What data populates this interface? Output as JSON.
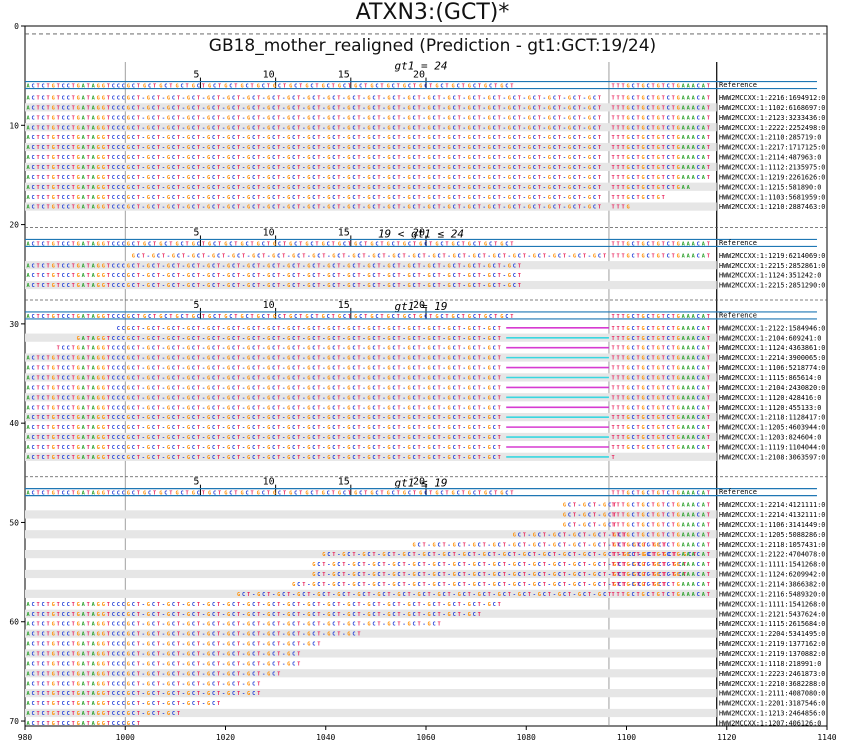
{
  "title": "ATXN3:(GCT)*",
  "subtitle": "GB18_mother_realigned (Prediction - gt1:GCT:19/24)",
  "repeat_unit": "GCT",
  "reference_label": "Reference",
  "flank_left": "ACTCTGTCCTGATAGGTCCC",
  "flank_right": "TTTGCTGCTGTCTGAAACAT",
  "x_axis": {
    "min": 980,
    "max": 1140,
    "ticks": [
      "980",
      "1000",
      "1020",
      "1040",
      "1060",
      "1080",
      "1100",
      "1120",
      "1140"
    ]
  },
  "y_axis": {
    "ticks": [
      "0",
      "10",
      "20",
      "30",
      "40",
      "50",
      "60",
      "70"
    ]
  },
  "repeat_ticks": [
    "5",
    "10",
    "15",
    "20"
  ],
  "colors": {
    "A": "#2ca02c",
    "C": "#1f3bd6",
    "G": "#ff8c00",
    "T": "#e8205a",
    "pink": "#d63bd1",
    "cyan": "#39d7e0",
    "ref_line": "#1f77b4"
  },
  "panels": [
    {
      "label": "gt1 = 24",
      "reads": [
        {
          "name": "HWW2MCCXX:1:2216:1694912:0",
          "start": 0,
          "left": 20,
          "repeats": 24,
          "right": 20
        },
        {
          "name": "HWW2MCCXX:1:1102:6168697:0",
          "start": 0,
          "left": 20,
          "repeats": 24,
          "right": 20
        },
        {
          "name": "HWW2MCCXX:1:2123:3233436:0",
          "start": 0,
          "left": 20,
          "repeats": 24,
          "right": 20
        },
        {
          "name": "HWW2MCCXX:1:2222:2252498:0",
          "start": 0,
          "left": 20,
          "repeats": 24,
          "right": 20
        },
        {
          "name": "HWW2MCCXX:1:2110:285719:0",
          "start": 0,
          "left": 20,
          "repeats": 24,
          "right": 20
        },
        {
          "name": "HWW2MCCXX:1:2217:1717125:0",
          "start": 0,
          "left": 20,
          "repeats": 24,
          "right": 20
        },
        {
          "name": "HWW2MCCXX:1:2114:487963:0",
          "start": 0,
          "left": 20,
          "repeats": 24,
          "right": 20
        },
        {
          "name": "HWW2MCCXX:1:1112:2135975:0",
          "start": 0,
          "left": 20,
          "repeats": 24,
          "right": 20
        },
        {
          "name": "HWW2MCCXX:1:1219:2261626:0",
          "start": 0,
          "left": 20,
          "repeats": 24,
          "right": 20
        },
        {
          "name": "HWW2MCCXX:1:1215:581890:0",
          "start": 0,
          "left": 20,
          "repeats": 24,
          "right": 16
        },
        {
          "name": "HWW2MCCXX:1:1103:5681959:0",
          "start": 0,
          "left": 20,
          "repeats": 24,
          "right": 11
        },
        {
          "name": "HWW2MCCXX:1:1210:2887463:0",
          "start": 0,
          "left": 20,
          "repeats": 24,
          "right": 4
        }
      ]
    },
    {
      "label": "19 < gt1 ≤ 24",
      "reads": [
        {
          "name": "HWW2MCCXX:1:1219:6214069:0",
          "start": 1001,
          "left": 0,
          "repeats": 24,
          "right": 20
        },
        {
          "name": "HWW2MCCXX:1:2215:2852861:0",
          "start": 0,
          "left": 20,
          "repeats": 20,
          "right": 0
        },
        {
          "name": "HWW2MCCXX:1:1124:351242:0",
          "start": 0,
          "left": 20,
          "repeats": 20,
          "right": 0
        },
        {
          "name": "HWW2MCCXX:1:2215:2851290:0",
          "start": 0,
          "left": 20,
          "repeats": 20,
          "right": 0
        }
      ]
    },
    {
      "label": "gt1 = 19",
      "reads": [
        {
          "name": "HWW2MCCXX:1:2122:1584946:0",
          "start": 998,
          "left": 2,
          "repeats": 19,
          "right": 20,
          "gap": "pink"
        },
        {
          "name": "HWW2MCCXX:1:2104:609241:0",
          "start": 990,
          "left": 10,
          "repeats": 19,
          "right": 20,
          "gap": "cyan"
        },
        {
          "name": "HWW2MCCXX:1:1124:4363861:0",
          "start": 986,
          "left": 14,
          "repeats": 19,
          "right": 20,
          "gap": "pink"
        },
        {
          "name": "HWW2MCCXX:1:2214:3900065:0",
          "start": 0,
          "left": 20,
          "repeats": 19,
          "right": 20,
          "gap": "cyan"
        },
        {
          "name": "HWW2MCCXX:1:1106:5218774:0",
          "start": 0,
          "left": 20,
          "repeats": 19,
          "right": 20,
          "gap": "pink"
        },
        {
          "name": "HWW2MCCXX:1:1115:865614:0",
          "start": 0,
          "left": 20,
          "repeats": 19,
          "right": 20,
          "gap": "cyan"
        },
        {
          "name": "HWW2MCCXX:1:2104:2430820:0",
          "start": 0,
          "left": 20,
          "repeats": 19,
          "right": 20,
          "gap": "pink"
        },
        {
          "name": "HWW2MCCXX:1:1120:428416:0",
          "start": 0,
          "left": 20,
          "repeats": 19,
          "right": 20,
          "gap": "cyan"
        },
        {
          "name": "HWW2MCCXX:1:1120:455133:0",
          "start": 0,
          "left": 20,
          "repeats": 19,
          "right": 20,
          "gap": "pink"
        },
        {
          "name": "HWW2MCCXX:1:2118:1128417:0",
          "start": 0,
          "left": 20,
          "repeats": 19,
          "right": 20,
          "gap": "cyan"
        },
        {
          "name": "HWW2MCCXX:1:1205:4603944:0",
          "start": 0,
          "left": 20,
          "repeats": 19,
          "right": 20,
          "gap": "pink"
        },
        {
          "name": "HWW2MCCXX:1:1203:824604:0",
          "start": 0,
          "left": 20,
          "repeats": 19,
          "right": 20,
          "gap": "cyan"
        },
        {
          "name": "HWW2MCCXX:1:1119:1104044:0",
          "start": 0,
          "left": 20,
          "repeats": 19,
          "right": 20,
          "gap": "pink"
        },
        {
          "name": "HWW2MCCXX:1:2108:3063597:0",
          "start": 0,
          "left": 20,
          "repeats": 19,
          "right": 1,
          "gap": "cyan"
        }
      ]
    },
    {
      "label": "gt1 ≤ 19",
      "reads": [
        {
          "name": "HWW2MCCXX:1:2214:4121111:0",
          "start": 1087,
          "left": 0,
          "repeats": 3,
          "right": 20
        },
        {
          "name": "HWW2MCCXX:1:2214:4132111:0",
          "start": 1087,
          "left": 0,
          "repeats": 3,
          "right": 20
        },
        {
          "name": "HWW2MCCXX:1:1106:3141449:0",
          "start": 1087,
          "left": 0,
          "repeats": 3,
          "right": 20
        },
        {
          "name": "HWW2MCCXX:1:1205:5088286:0",
          "start": 1077,
          "left": 0,
          "repeats": 6,
          "right": 20
        },
        {
          "name": "HWW2MCCXX:1:2118:1057431:0",
          "start": 1057,
          "left": 0,
          "repeats": 13,
          "right": 20
        },
        {
          "name": "HWW2MCCXX:1:2122:4704078:0",
          "start": 1039,
          "left": 0,
          "repeats": 19,
          "right": 20
        },
        {
          "name": "HWW2MCCXX:1:1111:1541268:0",
          "start": 1037,
          "left": 0,
          "repeats": 19,
          "right": 20
        },
        {
          "name": "HWW2MCCXX:1:1124:6209942:0",
          "start": 1037,
          "left": 0,
          "repeats": 19,
          "right": 20
        },
        {
          "name": "HWW2MCCXX:1:2114:3866382:0",
          "start": 1033,
          "left": 0,
          "repeats": 19,
          "right": 20
        },
        {
          "name": "HWW2MCCXX:1:2116:5489320:0",
          "start": 1022,
          "left": 0,
          "repeats": 19,
          "right": 20
        },
        {
          "name": "HWW2MCCXX:1:1111:1541268:0",
          "start": 0,
          "left": 20,
          "repeats": 19,
          "right": 0
        },
        {
          "name": "HWW2MCCXX:1:2121:5437624:0",
          "start": 0,
          "left": 20,
          "repeats": 18,
          "right": 0
        },
        {
          "name": "HWW2MCCXX:1:1115:2615684:0",
          "start": 0,
          "left": 20,
          "repeats": 16,
          "right": 0
        },
        {
          "name": "HWW2MCCXX:1:2204:5341495:0",
          "start": 0,
          "left": 20,
          "repeats": 12,
          "right": 0
        },
        {
          "name": "HWW2MCCXX:1:2119:1377162:0",
          "start": 0,
          "left": 20,
          "repeats": 10,
          "right": 0
        },
        {
          "name": "HWW2MCCXX:1:2119:1370882:0",
          "start": 0,
          "left": 20,
          "repeats": 9,
          "right": 0
        },
        {
          "name": "HWW2MCCXX:1:1118:218991:0",
          "start": 0,
          "left": 20,
          "repeats": 9,
          "right": 0
        },
        {
          "name": "HWW2MCCXX:1:2223:2461873:0",
          "start": 0,
          "left": 20,
          "repeats": 8,
          "right": 0
        },
        {
          "name": "HWW2MCCXX:1:2210:3682288:0",
          "start": 0,
          "left": 20,
          "repeats": 7,
          "right": 0
        },
        {
          "name": "HWW2MCCXX:1:2111:4087080:0",
          "start": 0,
          "left": 20,
          "repeats": 7,
          "right": 0
        },
        {
          "name": "HWW2MCCXX:1:2201:3187546:0",
          "start": 0,
          "left": 20,
          "repeats": 5,
          "right": 0
        },
        {
          "name": "HWW2MCCXX:1:1213:2464856:0",
          "start": 0,
          "left": 20,
          "repeats": 3,
          "right": 0
        },
        {
          "name": "HWW2MCCXX:1:1207:406126:0",
          "start": 0,
          "left": 20,
          "repeats": 1,
          "right": 0
        }
      ]
    }
  ]
}
